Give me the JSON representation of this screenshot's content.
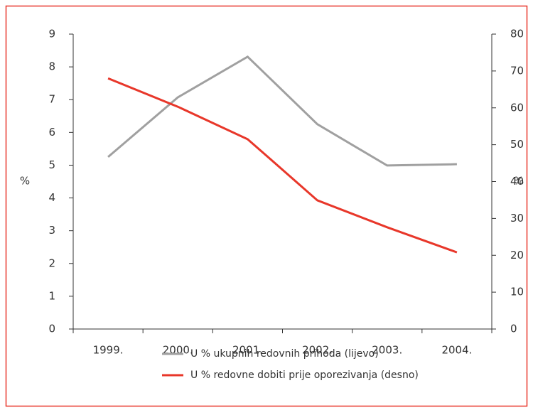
{
  "chart_data": {
    "type": "line",
    "categories": [
      "1999.",
      "2000.",
      "2001.",
      "2002.",
      "2003.",
      "2004."
    ],
    "series": [
      {
        "name": "U % ukupnih redovnih prihoda (lijevo)",
        "color": "#a0a0a0",
        "values": [
          5.25,
          7.07,
          8.31,
          6.25,
          4.99,
          5.03
        ]
      },
      {
        "name": "U % redovne dobiti prije oporezivanja (desno)",
        "color": "#e8372a",
        "axis": "y2",
        "values": [
          68.0,
          60.3,
          51.5,
          34.9,
          27.6,
          20.8
        ]
      }
    ],
    "ylabel": "%",
    "y2label": "%",
    "ylim": [
      0,
      9
    ],
    "yticks": [
      0,
      1,
      2,
      3,
      4,
      5,
      6,
      7,
      8,
      9
    ],
    "y2lim": [
      0,
      80
    ],
    "y2ticks": [
      0,
      10,
      20,
      30,
      40,
      50,
      60,
      70,
      80
    ],
    "grid": false
  }
}
